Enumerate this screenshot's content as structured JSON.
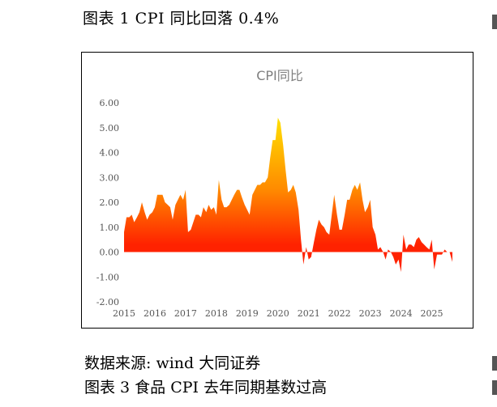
{
  "figure_title": "图表 1 CPI 同比回落 0.4%",
  "source_text": "数据来源: wind 大同证券",
  "next_figure_title": "图表 3 食品 CPI 去年同期基数过高",
  "chart_data": {
    "type": "area",
    "title": "CPI同比",
    "xlabel": "",
    "ylabel": "",
    "ylim": [
      -2,
      6
    ],
    "yticks": [
      "6.00",
      "5.00",
      "4.00",
      "3.00",
      "2.00",
      "1.00",
      "0.00",
      "-1.00",
      "-2.00"
    ],
    "xticks": [
      "2015",
      "2016",
      "2017",
      "2018",
      "2019",
      "2020",
      "2021",
      "2022",
      "2023",
      "2024",
      "2025"
    ],
    "xlim": [
      2015.0,
      2025.75
    ],
    "grid": false,
    "legend": "none",
    "colors": {
      "low": "#ff2200",
      "mid": "#ff8a00",
      "high": "#ffe000"
    },
    "series": [
      {
        "x": [
          2015.0,
          2015.08,
          2015.17,
          2015.25,
          2015.33,
          2015.42,
          2015.5,
          2015.58,
          2015.67,
          2015.75,
          2015.83,
          2015.92,
          2016.0,
          2016.08,
          2016.17,
          2016.25,
          2016.33,
          2016.42,
          2016.5,
          2016.58,
          2016.67,
          2016.75,
          2016.83,
          2016.92,
          2017.0,
          2017.08,
          2017.17,
          2017.25,
          2017.33,
          2017.42,
          2017.5,
          2017.58,
          2017.67,
          2017.75,
          2017.83,
          2017.92,
          2018.0,
          2018.08,
          2018.17,
          2018.25,
          2018.33,
          2018.42,
          2018.5,
          2018.58,
          2018.67,
          2018.75,
          2018.83,
          2018.92,
          2019.0,
          2019.08,
          2019.17,
          2019.25,
          2019.33,
          2019.42,
          2019.5,
          2019.58,
          2019.67,
          2019.75,
          2019.83,
          2019.92,
          2020.0,
          2020.08,
          2020.17,
          2020.25,
          2020.33,
          2020.42,
          2020.5,
          2020.58,
          2020.67,
          2020.75,
          2020.83,
          2020.92,
          2021.0,
          2021.08,
          2021.17,
          2021.25,
          2021.33,
          2021.42,
          2021.5,
          2021.58,
          2021.67,
          2021.75,
          2021.83,
          2021.92,
          2022.0,
          2022.08,
          2022.17,
          2022.25,
          2022.33,
          2022.42,
          2022.5,
          2022.58,
          2022.67,
          2022.75,
          2022.83,
          2022.92,
          2023.0,
          2023.08,
          2023.17,
          2023.25,
          2023.33,
          2023.42,
          2023.5,
          2023.58,
          2023.67,
          2023.75,
          2023.83,
          2023.92,
          2024.0,
          2024.08,
          2024.17,
          2024.25,
          2024.33,
          2024.42,
          2024.5,
          2024.58,
          2024.67,
          2024.75,
          2024.83,
          2024.92,
          2025.0,
          2025.08,
          2025.17,
          2025.25,
          2025.33,
          2025.42,
          2025.5,
          2025.58,
          2025.67
        ],
        "values": [
          0.8,
          1.4,
          1.4,
          1.5,
          1.2,
          1.4,
          1.6,
          2.0,
          1.6,
          1.3,
          1.5,
          1.6,
          1.8,
          2.3,
          2.3,
          2.3,
          2.0,
          1.9,
          1.8,
          1.3,
          1.9,
          2.1,
          2.3,
          2.1,
          2.5,
          0.8,
          0.9,
          1.2,
          1.5,
          1.5,
          1.4,
          1.8,
          1.6,
          1.9,
          1.7,
          1.8,
          1.5,
          2.9,
          2.1,
          1.8,
          1.8,
          1.9,
          2.1,
          2.3,
          2.5,
          2.5,
          2.2,
          1.9,
          1.7,
          1.5,
          2.3,
          2.5,
          2.7,
          2.7,
          2.8,
          2.8,
          3.0,
          3.8,
          4.5,
          4.5,
          5.4,
          5.2,
          4.3,
          3.3,
          2.4,
          2.5,
          2.7,
          2.4,
          1.7,
          0.5,
          -0.5,
          0.2,
          -0.3,
          -0.2,
          0.4,
          0.9,
          1.3,
          1.1,
          1.0,
          0.8,
          0.7,
          1.5,
          2.3,
          1.5,
          0.9,
          0.9,
          1.5,
          2.1,
          2.1,
          2.5,
          2.7,
          2.5,
          2.8,
          2.1,
          1.6,
          1.8,
          2.1,
          1.0,
          0.7,
          0.1,
          0.2,
          0.0,
          -0.3,
          0.1,
          0.0,
          -0.2,
          -0.5,
          -0.3,
          -0.8,
          0.7,
          0.1,
          0.3,
          0.3,
          0.2,
          0.5,
          0.6,
          0.4,
          0.3,
          0.2,
          0.1,
          0.5,
          -0.7,
          -0.1,
          -0.1,
          -0.1,
          0.1,
          0.0,
          0.0,
          -0.4
        ]
      }
    ]
  }
}
